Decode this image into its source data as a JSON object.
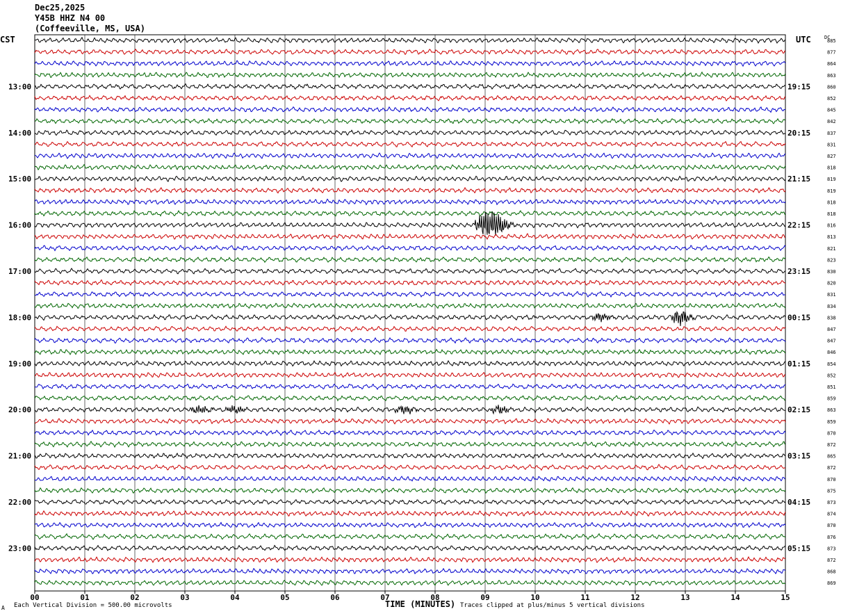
{
  "header": {
    "date": "Dec25,2025",
    "station": "Y45B HHZ N4 00",
    "location": "(Coffeeville, MS, USA)"
  },
  "left_label": "CST",
  "right_label": "UTC",
  "dc_label": "DC",
  "footer": {
    "scale": "Each Vertical Division =  500.00 microvolts",
    "xlabel": "TIME (MINUTES)",
    "clip": "Traces clipped at plus/minus 5 vertical divisions",
    "mark": "A"
  },
  "colors": {
    "trace_cycle": [
      "#000000",
      "#cc0000",
      "#0000cc",
      "#006600"
    ],
    "grid": "#000000"
  },
  "chart_data": {
    "type": "line",
    "title": "",
    "xlabel": "TIME (MINUTES)",
    "xlim": [
      0,
      15
    ],
    "x_ticks": [
      "00",
      "01",
      "02",
      "03",
      "04",
      "05",
      "06",
      "07",
      "08",
      "09",
      "10",
      "11",
      "12",
      "13",
      "14",
      "15"
    ],
    "row_count": 48,
    "minutes_per_row": 15,
    "cst_hour_labels": [
      "13:00",
      "14:00",
      "15:00",
      "16:00",
      "17:00",
      "18:00",
      "19:00",
      "20:00",
      "21:00",
      "22:00",
      "23:00"
    ],
    "utc_hour_labels": [
      "19:15",
      "20:15",
      "21:15",
      "22:15",
      "23:15",
      "00:15",
      "01:15",
      "02:15",
      "03:15",
      "04:15",
      "05:15"
    ],
    "hour_label_first_row": 4,
    "dc_values": [
      885,
      877,
      864,
      863,
      860,
      852,
      845,
      842,
      837,
      831,
      827,
      818,
      819,
      819,
      818,
      818,
      816,
      813,
      821,
      823,
      830,
      820,
      831,
      834,
      838,
      847,
      847,
      846,
      854,
      852,
      851,
      859,
      863,
      859,
      870,
      872,
      865,
      872,
      870,
      875,
      873,
      874,
      870,
      876,
      873,
      872,
      868,
      869
    ],
    "events": [
      {
        "row": 16,
        "minute": 9.1,
        "amplitude": "large"
      },
      {
        "row": 24,
        "minute": 11.3,
        "amplitude": "small"
      },
      {
        "row": 24,
        "minute": 12.9,
        "amplitude": "medium"
      },
      {
        "row": 32,
        "minute": 3.3,
        "amplitude": "small"
      },
      {
        "row": 32,
        "minute": 4.0,
        "amplitude": "small"
      },
      {
        "row": 32,
        "minute": 7.4,
        "amplitude": "small"
      },
      {
        "row": 32,
        "minute": 9.3,
        "amplitude": "small"
      }
    ]
  }
}
